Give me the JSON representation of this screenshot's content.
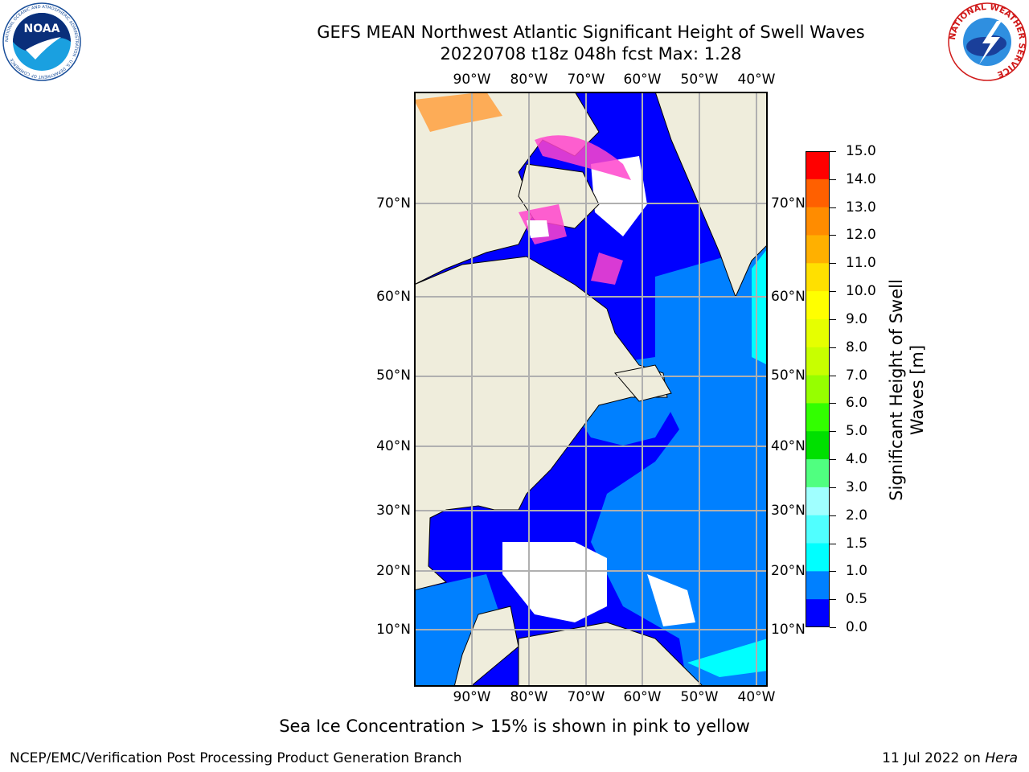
{
  "header": {
    "title_line1": "GEFS MEAN Northwest Atlantic Significant Height of Swell Waves",
    "title_line2": "20220708 t18z 048h fcst   Max: 1.28",
    "noaa_logo_text": "NOAA",
    "noaa_ring_text": "NATIONAL OCEANIC AND ATMOSPHERIC ADMINISTRATION · U.S. DEPARTMENT OF COMMERCE",
    "nws_ring_text": "NATIONAL WEATHER SERVICE"
  },
  "map": {
    "lon_labels": [
      "90°W",
      "80°W",
      "70°W",
      "60°W",
      "50°W",
      "40°W"
    ],
    "lat_labels": [
      "70°N",
      "60°N",
      "50°N",
      "40°N",
      "30°N",
      "20°N",
      "10°N"
    ],
    "colors": {
      "land": "#efeddc",
      "ice_free_calm": "#ffffff",
      "gridline": "#b0b0b0",
      "coast": "#000000",
      "sea_ice_pink": "#ff44cc",
      "sea_ice_orange": "#ffa040"
    }
  },
  "colorbar": {
    "title": "Significant Height of Swell Waves [m]",
    "labels": [
      "15.0",
      "14.0",
      "13.0",
      "12.0",
      "11.0",
      "10.0",
      "9.0",
      "8.0",
      "7.0",
      "6.0",
      "5.0",
      "4.0",
      "3.0",
      "2.0",
      "1.5",
      "1.0",
      "0.5",
      "0.0"
    ],
    "colors": [
      "#ff0000",
      "#ff3000",
      "#ff6000",
      "#ff8c00",
      "#ffb000",
      "#ffe000",
      "#ffff00",
      "#e6ff00",
      "#c8ff00",
      "#96ff00",
      "#32ff00",
      "#00e000",
      "#50ff80",
      "#a0ffff",
      "#50ffff",
      "#00ffff",
      "#0080ff",
      "#0000ff"
    ]
  },
  "footer": {
    "sea_ice_note": "Sea Ice Concentration > 15% is shown in pink to yellow",
    "credit": "NCEP/EMC/Verification Post Processing Product Generation Branch",
    "date": "11 Jul 2022 on",
    "host": "Hera"
  }
}
